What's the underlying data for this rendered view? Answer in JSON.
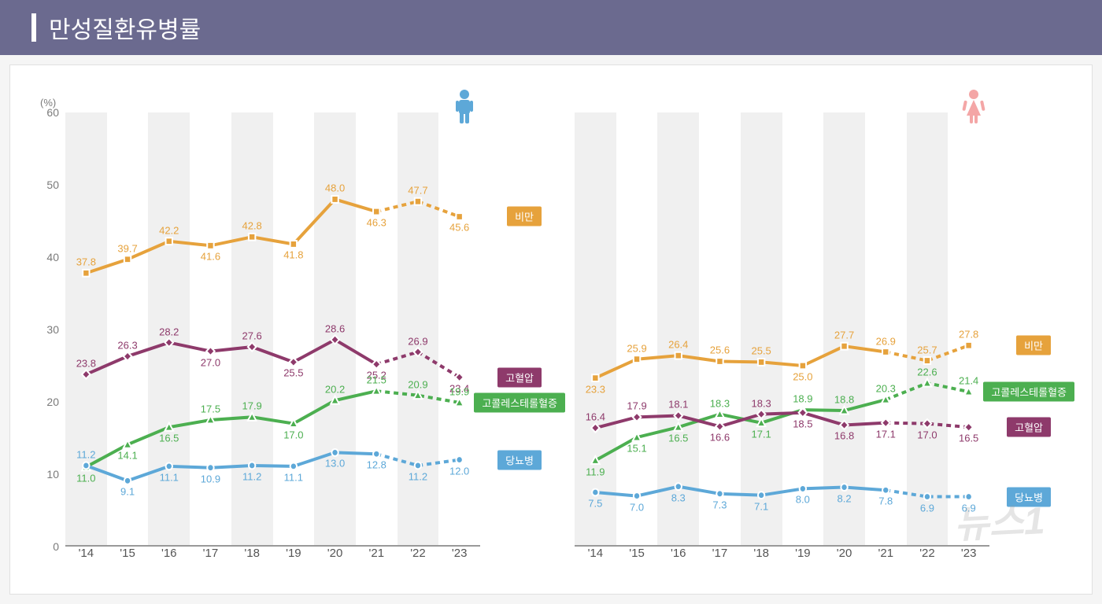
{
  "title": "만성질환유병률",
  "y_unit": "(%)",
  "y_axis": {
    "min": 0,
    "max": 60,
    "ticks": [
      0,
      10,
      20,
      30,
      40,
      50,
      60
    ]
  },
  "x_labels": [
    "'14",
    "'15",
    "'16",
    "'17",
    "'18",
    "'19",
    "'20",
    "'21",
    "'22",
    "'23"
  ],
  "colors": {
    "obesity": "#e6a23c",
    "hypertension": "#8e3a6b",
    "cholesterol": "#4caf50",
    "diabetes": "#5da8d8",
    "male_icon": "#5da8d8",
    "female_icon": "#f4a6a6",
    "grid_stripe": "#f0f0f0",
    "bg": "#ffffff",
    "header_bg": "#6b6a8f",
    "axis_text": "#7a7a7a"
  },
  "legend_labels": {
    "obesity": "비만",
    "hypertension": "고혈압",
    "cholesterol": "고콜레스테롤혈증",
    "diabetes": "당뇨병"
  },
  "marker": {
    "obesity": "square",
    "hypertension": "diamond",
    "cholesterol": "triangle",
    "diabetes": "circle"
  },
  "dashed_segments_after_index": 7,
  "panels": {
    "male": {
      "icon": "male",
      "series": {
        "obesity": {
          "values": [
            37.8,
            39.7,
            42.2,
            41.6,
            42.8,
            41.8,
            48.0,
            46.3,
            47.7,
            45.6
          ],
          "label_offsets": [
            -14,
            -14,
            -14,
            14,
            -14,
            14,
            -14,
            14,
            -14,
            14
          ]
        },
        "hypertension": {
          "values": [
            23.8,
            26.3,
            28.2,
            27.0,
            27.6,
            25.5,
            28.6,
            25.2,
            26.9,
            23.4
          ],
          "label_offsets": [
            -14,
            -14,
            -14,
            14,
            -14,
            14,
            -14,
            14,
            -14,
            14
          ]
        },
        "cholesterol": {
          "values": [
            11.0,
            14.1,
            16.5,
            17.5,
            17.9,
            17.0,
            20.2,
            21.5,
            20.9,
            19.9
          ],
          "label_offsets": [
            14,
            14,
            14,
            -14,
            -14,
            14,
            -14,
            -14,
            -14,
            -14
          ]
        },
        "diabetes": {
          "values": [
            11.2,
            9.1,
            11.1,
            10.9,
            11.2,
            11.1,
            13.0,
            12.8,
            11.2,
            12.0
          ],
          "label_offsets": [
            -14,
            14,
            14,
            14,
            14,
            14,
            14,
            14,
            14,
            14
          ]
        }
      }
    },
    "female": {
      "icon": "female",
      "series": {
        "obesity": {
          "values": [
            23.3,
            25.9,
            26.4,
            25.6,
            25.5,
            25.0,
            27.7,
            26.9,
            25.7,
            27.8
          ],
          "label_offsets": [
            14,
            -14,
            -14,
            -14,
            -14,
            14,
            -14,
            -14,
            -14,
            -14
          ]
        },
        "cholesterol": {
          "values": [
            11.9,
            15.1,
            16.5,
            18.3,
            17.1,
            18.9,
            18.8,
            20.3,
            22.6,
            21.4
          ],
          "label_offsets": [
            14,
            14,
            14,
            -14,
            14,
            -14,
            -14,
            -14,
            -14,
            -14
          ]
        },
        "hypertension": {
          "values": [
            16.4,
            17.9,
            18.1,
            16.6,
            18.3,
            18.5,
            16.8,
            17.1,
            17.0,
            16.5
          ],
          "label_offsets": [
            -14,
            -14,
            -14,
            14,
            -14,
            14,
            14,
            14,
            14,
            14
          ]
        },
        "diabetes": {
          "values": [
            7.5,
            7.0,
            8.3,
            7.3,
            7.1,
            8.0,
            8.2,
            7.8,
            6.9,
            6.9
          ],
          "label_offsets": [
            14,
            14,
            14,
            14,
            14,
            14,
            14,
            14,
            14,
            14
          ]
        }
      }
    }
  },
  "watermark": "뉴스1"
}
